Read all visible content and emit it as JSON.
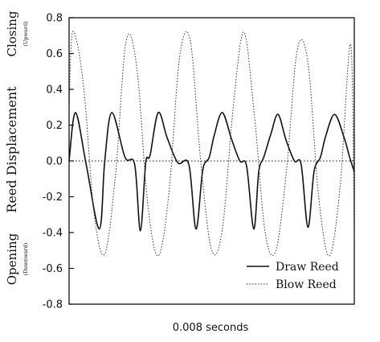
{
  "chart_data": {
    "type": "line",
    "title": "",
    "xlabel": "0.008 seconds",
    "ylabel": "Reed Displacement",
    "ylim": [
      -0.8,
      0.8
    ],
    "yticks": [
      "0.8",
      "0.6",
      "0.4",
      "0.2",
      "0.0",
      "-0.2",
      "-0.4",
      "-0.6",
      "-0.8"
    ],
    "xlim": [
      0,
      0.008
    ],
    "annotations": {
      "top": "Closing",
      "top_sub": "(Upward)",
      "bottom": "Opening",
      "bottom_sub": "(Downward)"
    },
    "legend_position": "bottom-right",
    "grid": false,
    "zero_line": "dotted",
    "series": [
      {
        "name": "Draw Reed",
        "style": "solid",
        "color": "#111111",
        "x": [
          0,
          0.00018,
          0.00048,
          0.00085,
          0.001,
          0.0012,
          0.00157,
          0.00184,
          0.002,
          0.00215,
          0.00227,
          0.0025,
          0.00275,
          0.00305,
          0.00336,
          0.00356,
          0.00375,
          0.00393,
          0.00408,
          0.0043,
          0.00456,
          0.00479,
          0.00498,
          0.00518,
          0.00532,
          0.00546,
          0.00566,
          0.00586,
          0.00608,
          0.00632,
          0.00651,
          0.0067,
          0.00687,
          0.00705,
          0.0072,
          0.00745,
          0.00773,
          0.00787,
          0.008
        ],
        "values": [
          0.0,
          0.27,
          -0.02,
          -0.38,
          0.0,
          0.27,
          0.02,
          -0.02,
          -0.39,
          -0.01,
          0.03,
          0.27,
          0.13,
          -0.01,
          -0.02,
          -0.38,
          -0.05,
          0.02,
          0.15,
          0.27,
          0.12,
          0.0,
          -0.03,
          -0.38,
          -0.06,
          0.02,
          0.15,
          0.26,
          0.12,
          0.0,
          -0.02,
          -0.37,
          -0.06,
          0.02,
          0.14,
          0.26,
          0.12,
          0.02,
          -0.06
        ]
      },
      {
        "name": "Blow Reed",
        "style": "dotted",
        "color": "#333333",
        "x": [
          0,
          0.0001,
          0.0004,
          0.0007,
          0.001,
          0.0013,
          0.0016,
          0.0019,
          0.0022,
          0.0025,
          0.0028,
          0.0031,
          0.0034,
          0.0037,
          0.004,
          0.0043,
          0.0046,
          0.0049,
          0.0052,
          0.0055,
          0.0058,
          0.0061,
          0.0064,
          0.0067,
          0.007,
          0.0073,
          0.0076,
          0.0079,
          0.008
        ],
        "values": [
          0.28,
          0.72,
          0.43,
          -0.29,
          -0.52,
          -0.08,
          0.67,
          0.52,
          -0.23,
          -0.53,
          -0.18,
          0.58,
          0.67,
          -0.02,
          -0.5,
          -0.38,
          0.29,
          0.72,
          0.25,
          -0.4,
          -0.5,
          -0.05,
          0.62,
          0.55,
          -0.2,
          -0.53,
          -0.15,
          0.65,
          -0.45
        ]
      }
    ]
  }
}
